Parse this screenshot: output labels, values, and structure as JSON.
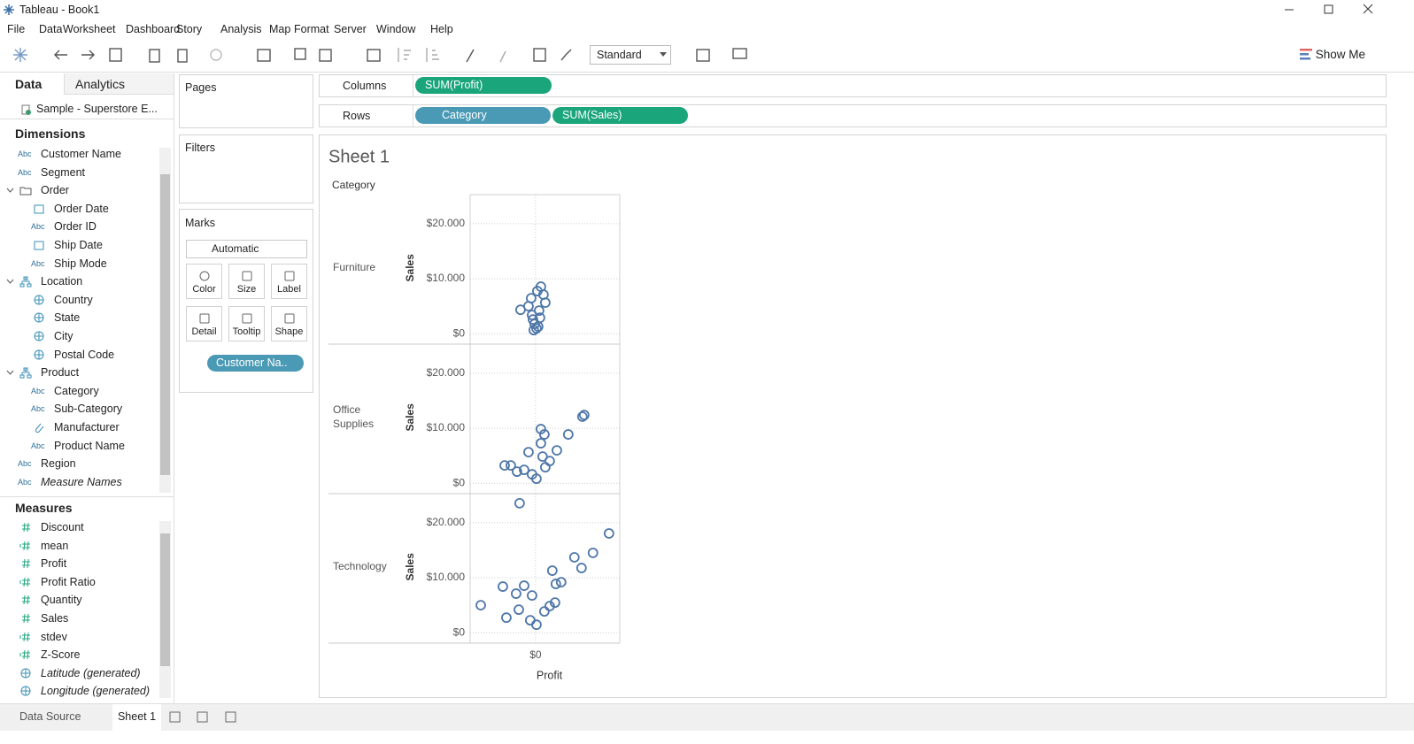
{
  "window": {
    "title": "Tableau - Book1"
  },
  "menu": [
    "File",
    "Data",
    "Worksheet",
    "Dashboard",
    "Story",
    "Analysis",
    "Map",
    "Format",
    "Server",
    "Window",
    "Help"
  ],
  "toolbar": {
    "fit": "Standard",
    "show_me": "Show Me"
  },
  "data_pane": {
    "tabs": [
      "Data",
      "Analytics"
    ],
    "datasource": "Sample - Superstore E...",
    "dimensions_title": "Dimensions",
    "dimensions": [
      {
        "tag": "Abc",
        "label": "Customer Name"
      },
      {
        "tag": "Abc",
        "label": "Segment"
      },
      {
        "icon": "folder",
        "label": "Order",
        "children": [
          {
            "icon": "date",
            "label": "Order Date"
          },
          {
            "tag": "Abc",
            "label": "Order ID"
          },
          {
            "icon": "date",
            "label": "Ship Date"
          },
          {
            "tag": "Abc",
            "label": "Ship Mode"
          }
        ]
      },
      {
        "icon": "hierarchy",
        "label": "Location",
        "children": [
          {
            "icon": "geo",
            "label": "Country"
          },
          {
            "icon": "geo",
            "label": "State"
          },
          {
            "icon": "geo",
            "label": "City"
          },
          {
            "icon": "geo",
            "label": "Postal Code"
          }
        ]
      },
      {
        "icon": "hierarchy",
        "label": "Product",
        "children": [
          {
            "tag": "Abc",
            "label": "Category"
          },
          {
            "tag": "Abc",
            "label": "Sub-Category"
          },
          {
            "icon": "clip",
            "label": "Manufacturer"
          },
          {
            "tag": "Abc",
            "label": "Product Name"
          }
        ]
      },
      {
        "tag": "Abc",
        "label": "Region"
      },
      {
        "tag": "Abc",
        "label": "Measure Names",
        "italic": true
      }
    ],
    "measures_title": "Measures",
    "measures": [
      {
        "icon": "hash",
        "label": "Discount"
      },
      {
        "icon": "calc",
        "label": "mean"
      },
      {
        "icon": "hash",
        "label": "Profit"
      },
      {
        "icon": "calc",
        "label": "Profit Ratio"
      },
      {
        "icon": "hash",
        "label": "Quantity"
      },
      {
        "icon": "hash",
        "label": "Sales"
      },
      {
        "icon": "calc",
        "label": "stdev"
      },
      {
        "icon": "calc",
        "label": "Z-Score"
      },
      {
        "icon": "geo",
        "label": "Latitude (generated)",
        "italic": true
      },
      {
        "icon": "geo",
        "label": "Longitude (generated)",
        "italic": true
      }
    ]
  },
  "shelves": {
    "pages": "Pages",
    "filters": "Filters",
    "columns": {
      "label": "Columns",
      "pills": [
        {
          "label": "SUM(Profit)",
          "color": "#1aa57a"
        }
      ]
    },
    "rows": {
      "label": "Rows",
      "pills": [
        {
          "label": "Category",
          "color": "#4a9ab5"
        },
        {
          "label": "SUM(Sales)",
          "color": "#1aa57a"
        }
      ]
    }
  },
  "marks": {
    "title": "Marks",
    "type": "Automatic",
    "buttons": [
      "Color",
      "Size",
      "Label",
      "Detail",
      "Tooltip",
      "Shape"
    ],
    "pill": "Customer Na.."
  },
  "chart_data": {
    "type": "scatter",
    "title": "Sheet 1",
    "facet_label": "Category",
    "x_label": "Profit",
    "y_label": "Sales",
    "color": "#4f77a8",
    "xlim": [
      -8000,
      10300
    ],
    "xticks": [
      {
        "value": 0,
        "label": "$0"
      }
    ],
    "ylim": [
      -1900,
      25300
    ],
    "yticks": [
      {
        "value": 0,
        "label": "$0"
      },
      {
        "value": 10000,
        "label": "$10.000"
      },
      {
        "value": 20000,
        "label": "$20.000"
      }
    ],
    "grid": true,
    "panels": [
      {
        "name": "Furniture",
        "x": [
          650,
          -540,
          970,
          -1840,
          1190,
          220,
          -430,
          430,
          -110,
          110,
          -320,
          540,
          -860,
          -220,
          320
        ],
        "y": [
          8550,
          6450,
          7100,
          4350,
          5650,
          7750,
          3390,
          4190,
          1770,
          970,
          2580,
          2900,
          5000,
          650,
          1290
        ]
      },
      {
        "name": "Office\nSupplies",
        "x": [
          5730,
          5950,
          4000,
          650,
          1080,
          2600,
          -3780,
          -3030,
          -2270,
          -860,
          1730,
          860,
          -430,
          110,
          1190,
          -1400,
          650
        ],
        "y": [
          12100,
          12400,
          8870,
          9840,
          8870,
          5970,
          3230,
          3230,
          2100,
          5650,
          4030,
          4840,
          1610,
          810,
          2900,
          2420,
          7260
        ]
      },
      {
        "name": "Technology",
        "x": [
          8980,
          -1950,
          7020,
          4750,
          5620,
          2050,
          -6700,
          -4000,
          -1400,
          -2380,
          -3570,
          -2050,
          3130,
          2480,
          2380,
          -430,
          1080,
          110,
          -650,
          1730
        ],
        "y": [
          18060,
          23550,
          14520,
          13710,
          11770,
          11290,
          5000,
          8390,
          8550,
          7100,
          2740,
          4190,
          9190,
          8870,
          5480,
          6770,
          3870,
          1450,
          2260,
          4840
        ]
      }
    ]
  },
  "tabs": [
    "Data Source",
    "Sheet 1"
  ]
}
